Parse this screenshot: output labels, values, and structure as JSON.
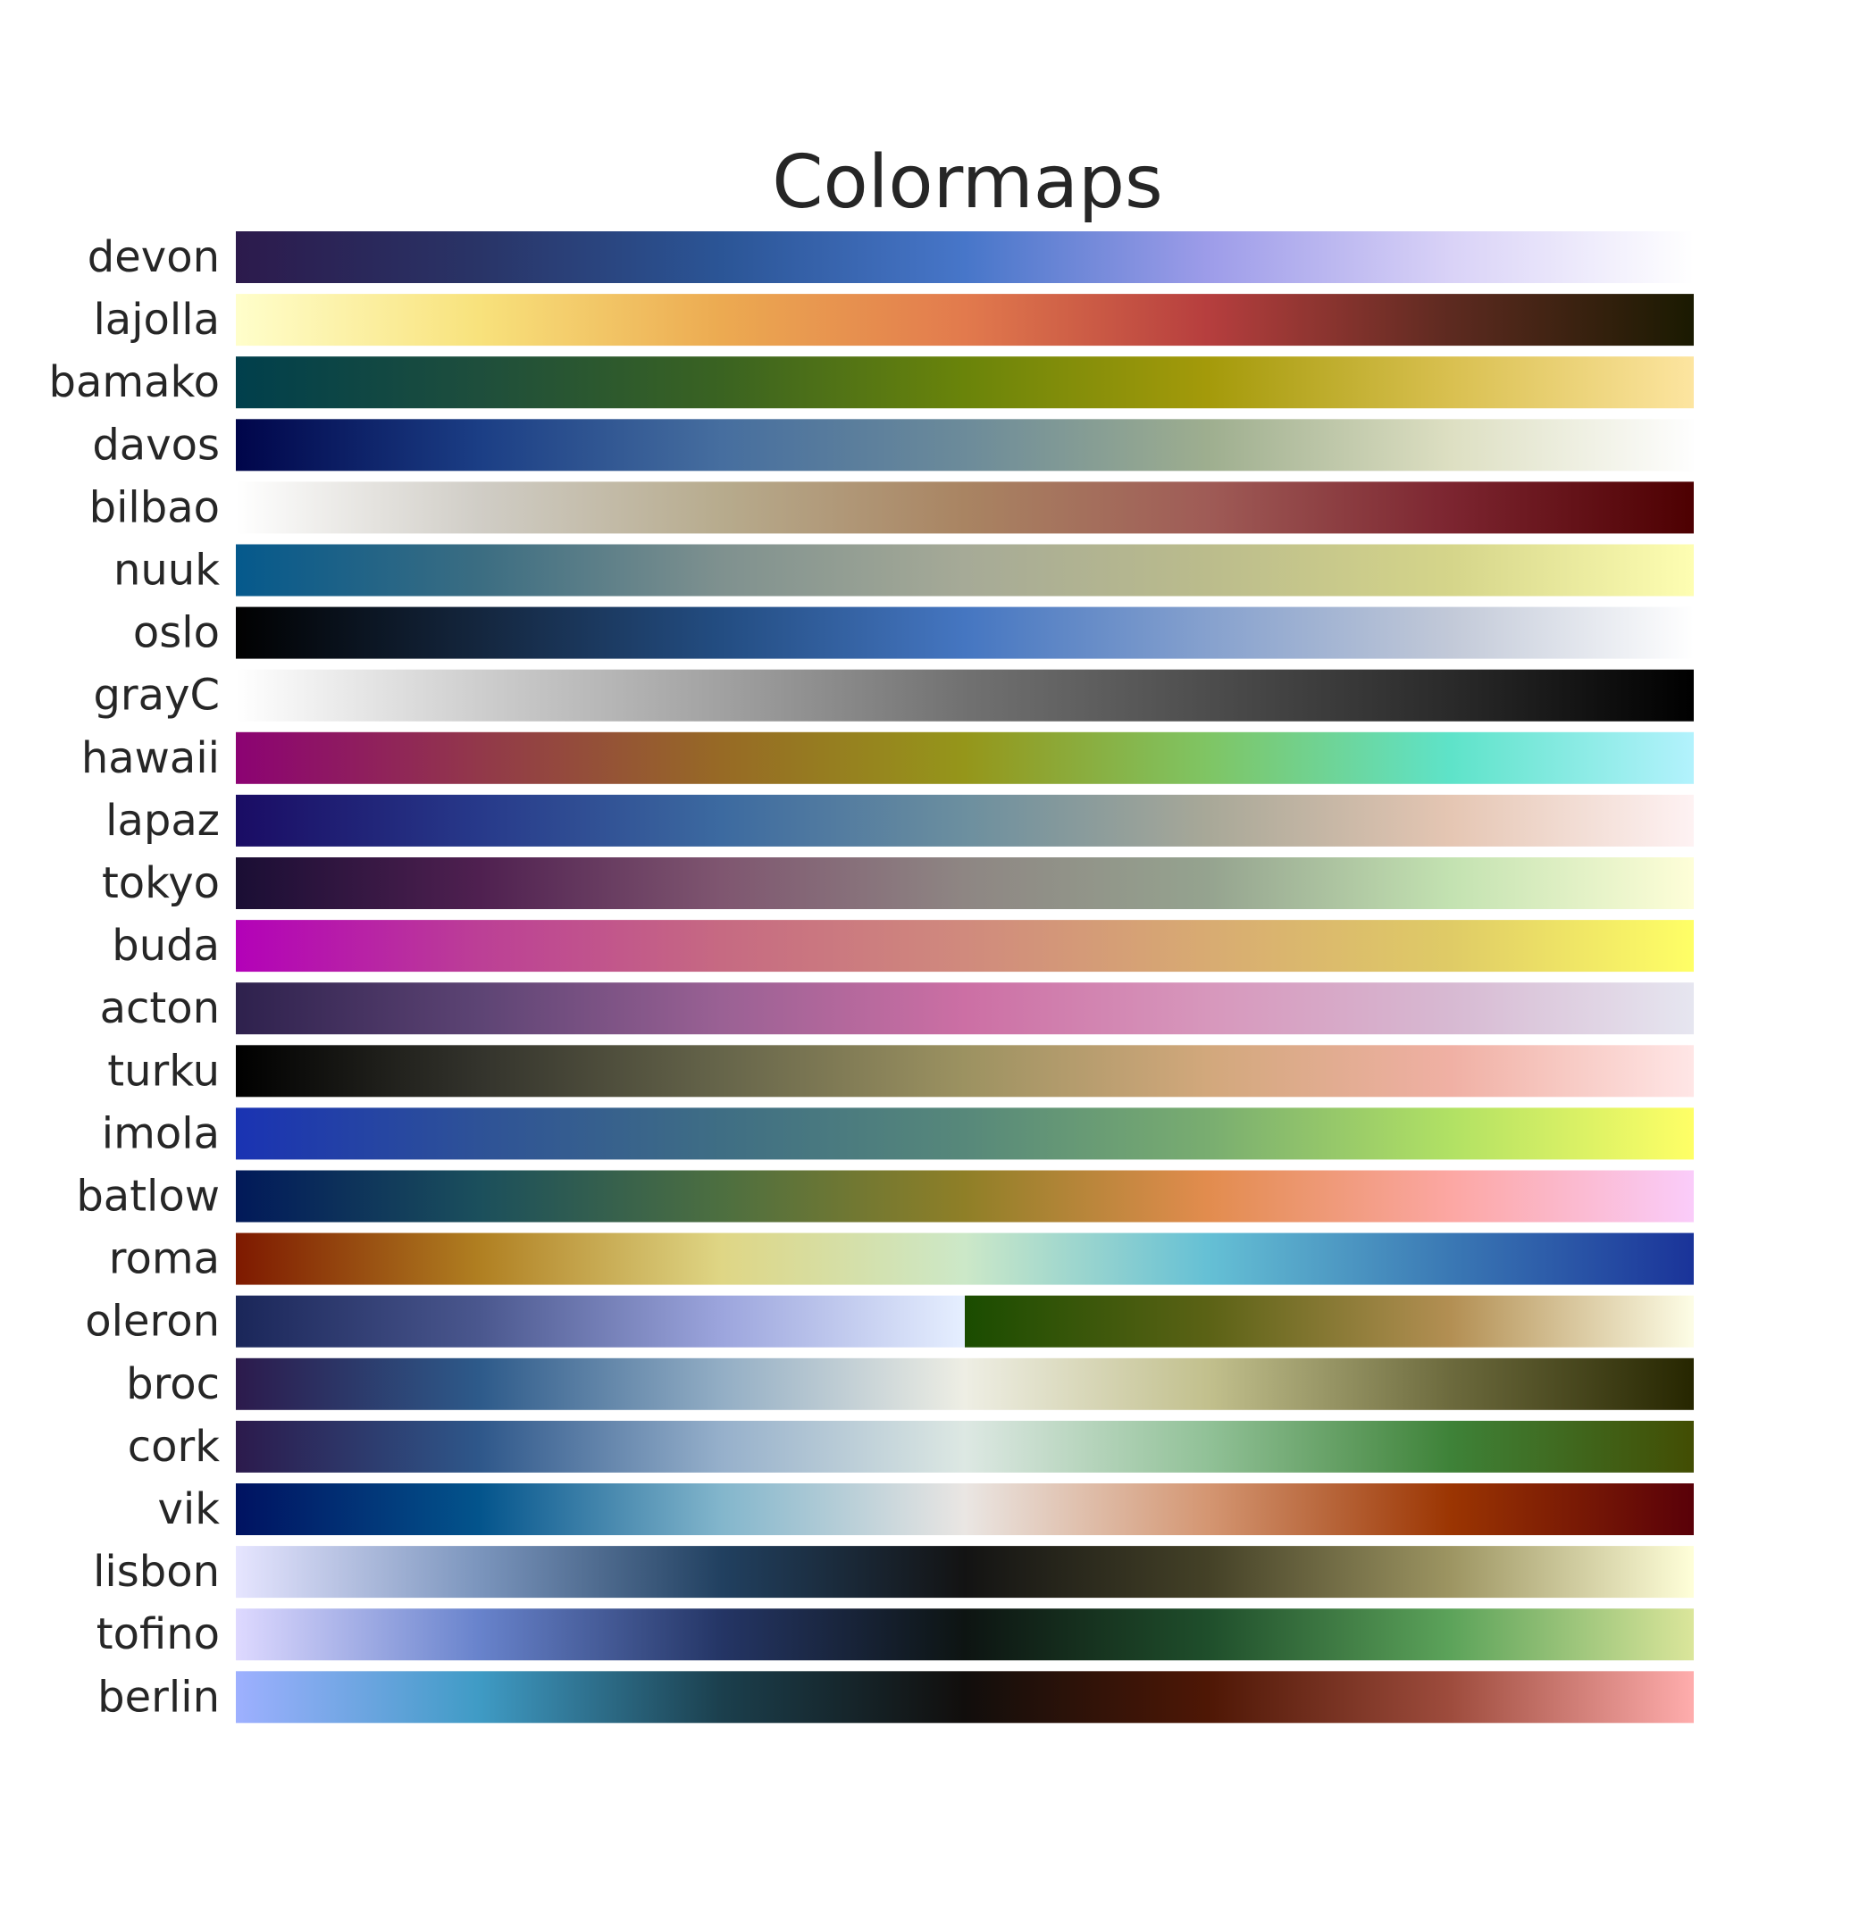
{
  "chart_data": {
    "type": "colormap-strips",
    "title": "Colormaps",
    "xlim": [
      0,
      1
    ],
    "grid": false,
    "legend": "none",
    "colormaps": [
      {
        "name": "devon",
        "stops": [
          "#2c1a4c",
          "#293467",
          "#2b5596",
          "#4776c9",
          "#9d9ce9",
          "#d9d2f7",
          "#ffffff"
        ]
      },
      {
        "name": "lajolla",
        "stops": [
          "#fffecb",
          "#f8e27c",
          "#ecaa51",
          "#e27a4d",
          "#b63e3e",
          "#5d2a20",
          "#1a1a01"
        ]
      },
      {
        "name": "bamako",
        "stops": [
          "#003f4c",
          "#1e4e3c",
          "#3a6321",
          "#6a840a",
          "#a49a0a",
          "#d9c050",
          "#fde5a0"
        ]
      },
      {
        "name": "davos",
        "stops": [
          "#00054a",
          "#1b3e85",
          "#466e9f",
          "#6c8b9a",
          "#9eae8f",
          "#dddfc2",
          "#fefefe"
        ]
      },
      {
        "name": "bilbao",
        "stops": [
          "#ffffff",
          "#d0cdc6",
          "#b7ab8d",
          "#a98462",
          "#9f5b56",
          "#7c2530",
          "#4d0001"
        ]
      },
      {
        "name": "nuuk",
        "stops": [
          "#05598c",
          "#3b6d82",
          "#7f918f",
          "#a6aa97",
          "#bbbc8c",
          "#d5d58a",
          "#fefeb2"
        ]
      },
      {
        "name": "oslo",
        "stops": [
          "#010101",
          "#14263e",
          "#234d82",
          "#4576c1",
          "#86a1ce",
          "#c2c9d8",
          "#ffffff"
        ]
      },
      {
        "name": "grayC",
        "stops": [
          "#ffffff",
          "#cecece",
          "#a1a1a1",
          "#717171",
          "#4d4d4d",
          "#2a2a2a",
          "#000000"
        ]
      },
      {
        "name": "hawaii",
        "stops": [
          "#8c0273",
          "#92384a",
          "#976a25",
          "#95961a",
          "#7fc564",
          "#5ee3c9",
          "#b3f2fd"
        ]
      },
      {
        "name": "lapaz",
        "stops": [
          "#1a0c64",
          "#27398a",
          "#3c6aa0",
          "#6c8f9f",
          "#a8a898",
          "#e5c6b3",
          "#fef2f3"
        ]
      },
      {
        "name": "tokyo",
        "stops": [
          "#1a0e34",
          "#4f2050",
          "#7f5670",
          "#8e8683",
          "#95a38f",
          "#c3e2b1",
          "#fefed8"
        ]
      },
      {
        "name": "buda",
        "stops": [
          "#b301b8",
          "#bc3f96",
          "#c66a82",
          "#d08a7d",
          "#d8ab72",
          "#dfcb66",
          "#ffff66"
        ]
      },
      {
        "name": "acton",
        "stops": [
          "#2e214d",
          "#5d4474",
          "#9a6194",
          "#cc6fa4",
          "#d797bc",
          "#d7b9d2",
          "#e6e6f0"
        ]
      },
      {
        "name": "turku",
        "stops": [
          "#000000",
          "#33332c",
          "#66654a",
          "#9c9261",
          "#d2a87c",
          "#f0b0a4",
          "#ffe6e6"
        ]
      },
      {
        "name": "imola",
        "stops": [
          "#1a33b3",
          "#2e5297",
          "#3f6e84",
          "#57887a",
          "#79ad70",
          "#b1e164",
          "#ffff66"
        ]
      },
      {
        "name": "batlow",
        "stops": [
          "#011959",
          "#1b4f5c",
          "#4d6f40",
          "#8f7f27",
          "#e28c4e",
          "#fca7a3",
          "#faccfa"
        ]
      },
      {
        "name": "roma",
        "stops": [
          "#7e1900",
          "#b07f21",
          "#dfd685",
          "#cce8c8",
          "#65c0d5",
          "#3a78b4",
          "#1a3399"
        ]
      },
      {
        "name": "broc",
        "stops": [
          "#2c1a4c",
          "#2d5a8a",
          "#93aec5",
          "#eeeee4",
          "#c2c08d",
          "#6c6a3d",
          "#262600"
        ]
      },
      {
        "name": "cork",
        "stops": [
          "#2c1a4c",
          "#2e578a",
          "#96b0cb",
          "#dde8e3",
          "#91c197",
          "#3e8238",
          "#424d03"
        ]
      },
      {
        "name": "vik",
        "stops": [
          "#001261",
          "#03548c",
          "#83b6cc",
          "#eae6e3",
          "#d49672",
          "#9b3502",
          "#590008"
        ]
      },
      {
        "name": "lisbon",
        "stops": [
          "#e6e5ff",
          "#7b95bd",
          "#214060",
          "#131313",
          "#444127",
          "#9d9562",
          "#ffffd9"
        ]
      },
      {
        "name": "tofino",
        "stops": [
          "#ded9ff",
          "#6883cc",
          "#243565",
          "#0d1412",
          "#1f4e2b",
          "#5ca35a",
          "#dbe69b"
        ]
      },
      {
        "name": "berlin",
        "stops": [
          "#9eb0ff",
          "#3f9bc5",
          "#1b3f4d",
          "#110e0c",
          "#4e1705",
          "#9e4c3d",
          "#ffadad"
        ]
      },
      {
        "name": "oleron",
        "segments": [
          {
            "range": [
              0,
              0.5
            ],
            "stops": [
              "#1a2659",
              "#4a578e",
              "#9ca5dd",
              "#e6efff"
            ]
          },
          {
            "range": [
              0.5,
              1
            ],
            "stops": [
              "#1a4c00",
              "#5b6215",
              "#b38f53",
              "#fdfde6"
            ]
          }
        ]
      }
    ],
    "order": [
      "devon",
      "lajolla",
      "bamako",
      "davos",
      "bilbao",
      "nuuk",
      "oslo",
      "grayC",
      "hawaii",
      "lapaz",
      "tokyo",
      "buda",
      "acton",
      "turku",
      "imola",
      "batlow",
      "roma",
      "oleron",
      "broc",
      "cork",
      "vik",
      "lisbon",
      "tofino",
      "berlin"
    ]
  }
}
